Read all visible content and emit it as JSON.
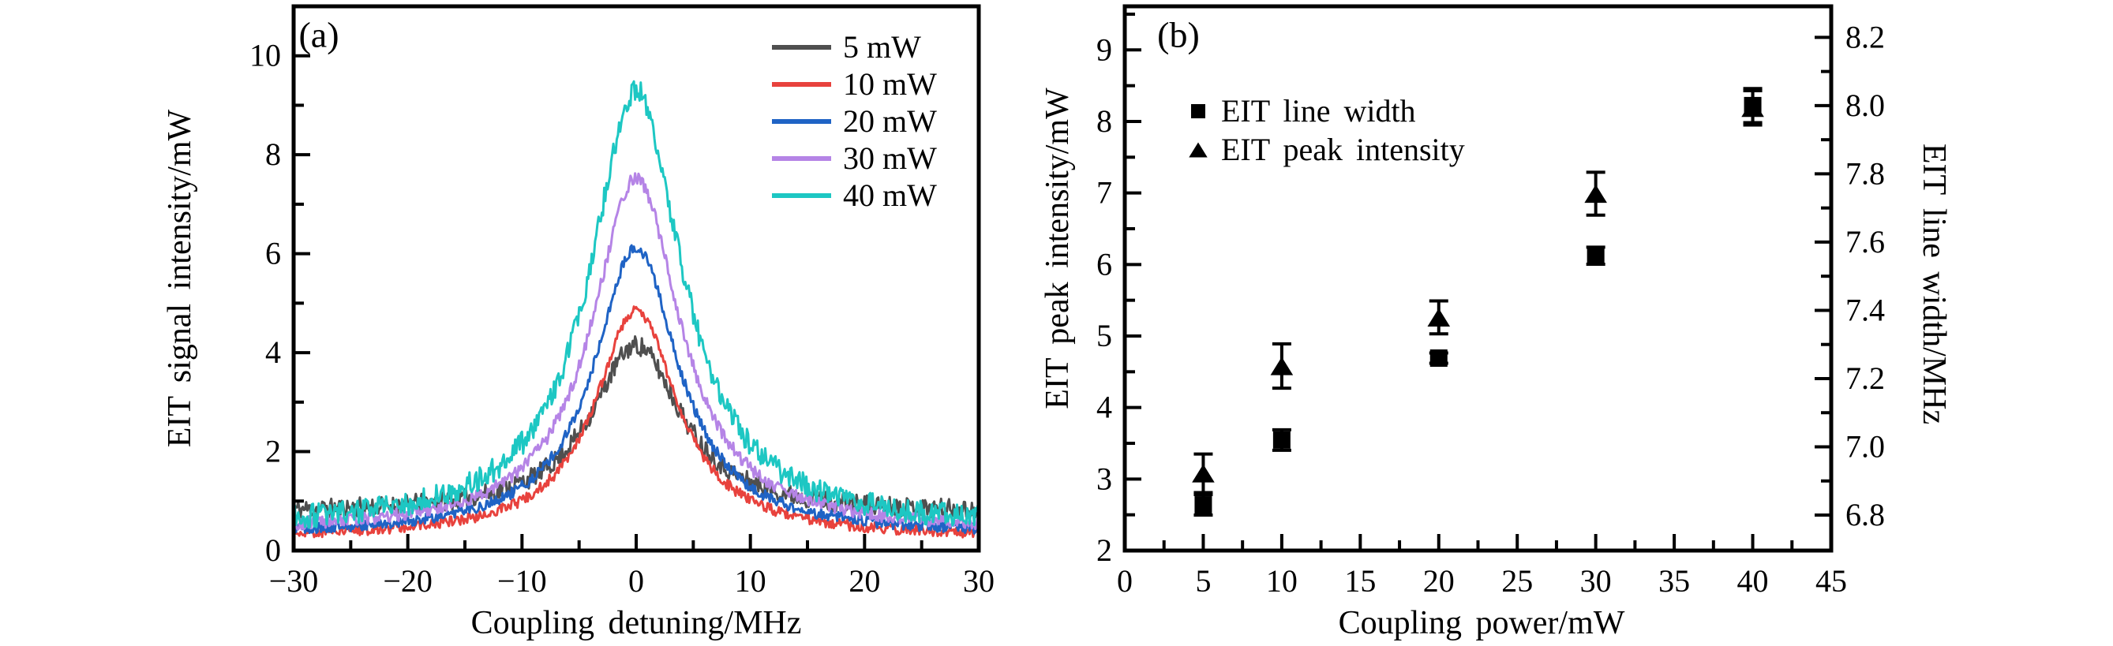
{
  "figure": {
    "background": "#ffffff",
    "panels": [
      {
        "label": "(a)"
      },
      {
        "label": "(b)"
      }
    ]
  },
  "chart_data": [
    {
      "panel": "a",
      "type": "line",
      "xlabel": "Coupling detuning/MHz",
      "ylabel": "EIT signal intensity/mW",
      "xlim": [
        -30,
        30
      ],
      "ylim": [
        0,
        11
      ],
      "x_major_ticks": [
        -30,
        -20,
        -10,
        0,
        10,
        20,
        30
      ],
      "x_minor_step": 5,
      "y_major_ticks": [
        0,
        2,
        4,
        6,
        8,
        10
      ],
      "y_minor_step": 1,
      "grid": false,
      "legend_position": "top-right",
      "curve_model": "lorentzian_plus_noise",
      "series": [
        {
          "name": "5 mW",
          "color": "#4f4f4f",
          "baseline": 0.75,
          "peak": 4.15,
          "hwhm_mhz": 4.8,
          "noise_amp": 0.2
        },
        {
          "name": "10 mW",
          "color": "#e8423d",
          "baseline": 0.27,
          "peak": 4.87,
          "hwhm_mhz": 4.4,
          "noise_amp": 0.11
        },
        {
          "name": "20 mW",
          "color": "#1f63c5",
          "baseline": 0.32,
          "peak": 6.12,
          "hwhm_mhz": 4.5,
          "noise_amp": 0.11
        },
        {
          "name": "30 mW",
          "color": "#b584e6",
          "baseline": 0.38,
          "peak": 7.53,
          "hwhm_mhz": 4.7,
          "noise_amp": 0.13
        },
        {
          "name": "40 mW",
          "color": "#1dc7c3",
          "baseline": 0.45,
          "peak": 9.3,
          "hwhm_mhz": 4.9,
          "noise_amp": 0.24
        }
      ]
    },
    {
      "panel": "b",
      "type": "scatter",
      "xlabel": "Coupling power/mW",
      "ylabel_left": "EIT peak intensity/mW",
      "ylabel_right": "EIT line width/MHz",
      "xlim": [
        0,
        45
      ],
      "ylim_left": [
        2,
        9.61
      ],
      "ylim_right": [
        6.696,
        8.291
      ],
      "x_major_ticks": [
        0,
        5,
        10,
        15,
        20,
        25,
        30,
        35,
        40,
        45
      ],
      "x_minor_step": 2.5,
      "y_left_major_ticks": [
        2,
        3,
        4,
        5,
        6,
        7,
        8,
        9
      ],
      "y_left_minor_step": 0.5,
      "y_right_major_ticks": [
        6.8,
        7.0,
        7.2,
        7.4,
        7.6,
        7.8,
        8.0,
        8.2
      ],
      "y_right_minor_step": 0.1,
      "grid": false,
      "marker_color": "#000000",
      "x": [
        5,
        10,
        20,
        30,
        40
      ],
      "series": [
        {
          "name": "EIT line width",
          "marker": "square",
          "axis": "right",
          "values": [
            6.83,
            7.02,
            7.26,
            7.56,
            8.0
          ],
          "errors": [
            0.03,
            0.03,
            0.015,
            0.025,
            0.05
          ]
        },
        {
          "name": "EIT peak intensity",
          "marker": "triangle",
          "axis": "left",
          "values": [
            3.08,
            4.58,
            5.26,
            6.99,
            8.19
          ],
          "errors": [
            0.27,
            0.31,
            0.23,
            0.3,
            0.24
          ]
        }
      ]
    }
  ]
}
